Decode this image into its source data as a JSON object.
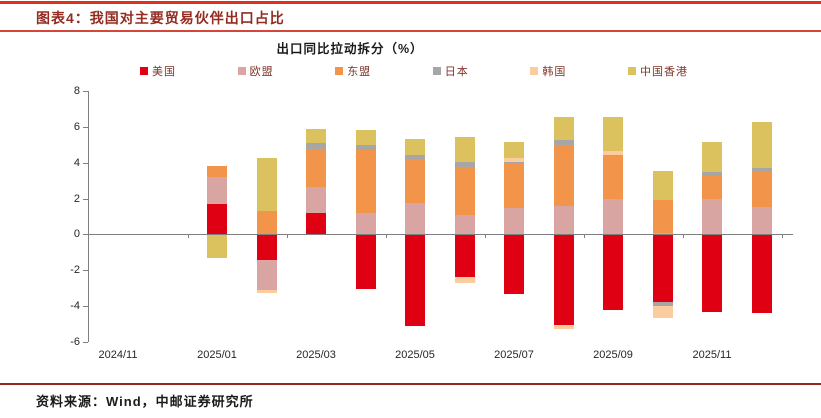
{
  "header": {
    "title": "图表4：我国对主要贸易伙伴出口占比"
  },
  "footer": {
    "source": "资料来源：Wind，中邮证券研究所"
  },
  "colors": {
    "top_rule": "#e0301e",
    "header_rule": "#d4453a",
    "footer_rule": "#99261d",
    "title_text": "#942b21",
    "legend_text": "#7e352a",
    "axis_line": "#7f7f7f"
  },
  "chart_data": {
    "type": "bar",
    "stacked": true,
    "title": "出口同比拉动拆分（%）",
    "legend_position": "top",
    "grid": false,
    "ylim": [
      -6,
      8
    ],
    "y_ticks": [
      8,
      6,
      4,
      2,
      0,
      -2,
      -4,
      -6
    ],
    "categories": [
      "2024/11",
      "2024/12",
      "2025/01",
      "2025/02",
      "2025/03",
      "2025/04",
      "2025/05",
      "2025/06",
      "2025/07",
      "2025/08",
      "2025/09",
      "2025/10",
      "2025/11",
      "2025/12"
    ],
    "x_tick_labels": [
      "2024/11",
      "2025/01",
      "2025/03",
      "2025/05",
      "2025/07",
      "2025/09",
      "2025/11"
    ],
    "series": [
      {
        "name": "美国",
        "color": "#e00013",
        "values": [
          null,
          null,
          1.7,
          -1.4,
          1.2,
          -3.05,
          -5.1,
          -2.4,
          -3.3,
          -5.05,
          -4.2,
          -3.75,
          -4.35,
          -4.4
        ]
      },
      {
        "name": "欧盟",
        "color": "#d9a5a2",
        "values": [
          null,
          null,
          1.5,
          -1.7,
          1.45,
          1.2,
          1.75,
          1.1,
          1.45,
          1.6,
          1.95,
          0.1,
          1.95,
          1.55
        ]
      },
      {
        "name": "东盟",
        "color": "#f2944a",
        "values": [
          null,
          null,
          0.6,
          1.3,
          2.1,
          3.5,
          2.45,
          2.65,
          2.5,
          3.4,
          2.4,
          1.8,
          1.3,
          1.95
        ]
      },
      {
        "name": "日本",
        "color": "#a6a6a6",
        "values": [
          null,
          null,
          0.0,
          0.0,
          0.35,
          0.3,
          0.25,
          0.3,
          0.1,
          0.25,
          0.1,
          -0.25,
          0.25,
          0.2
        ]
      },
      {
        "name": "韩国",
        "color": "#fbcd9e",
        "values": [
          null,
          null,
          0.0,
          -0.15,
          0.0,
          0.0,
          0.0,
          -0.3,
          0.2,
          -0.2,
          0.2,
          -0.65,
          0.0,
          0.0
        ]
      },
      {
        "name": "中国香港",
        "color": "#dcc25f",
        "values": [
          null,
          null,
          -1.3,
          2.95,
          0.8,
          0.8,
          0.9,
          1.4,
          0.9,
          1.3,
          1.9,
          1.65,
          1.65,
          2.55
        ]
      }
    ]
  }
}
